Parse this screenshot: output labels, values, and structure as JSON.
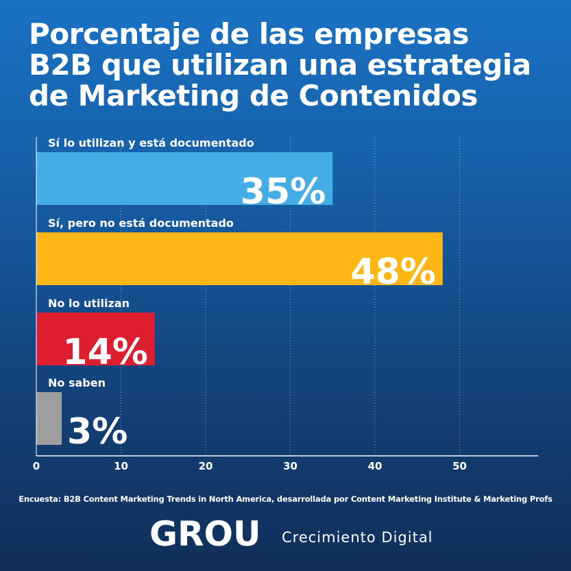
{
  "title_lines": [
    "Porcentaje de las empresas",
    "B2B que utilizan una estrategia",
    "de Marketing de Contenidos"
  ],
  "colors": {
    "background_top": "#1a72c4",
    "background_bottom": "#102f58",
    "bar_documented": "#45ade6",
    "bar_not_documented": "#fdb614",
    "bar_not_used": "#dc1e2e",
    "bar_dont_know": "#9e9e9e",
    "axis": "#ffffff"
  },
  "chart_data": {
    "type": "bar",
    "orientation": "horizontal",
    "categories": [
      "Sí lo utilizan y está documentado",
      "Sí, pero no está documentado",
      "No lo utilizan",
      "No saben"
    ],
    "values": [
      35,
      48,
      14,
      3
    ],
    "value_labels": [
      "35%",
      "48%",
      "14%",
      "3%"
    ],
    "bar_colors": [
      "#45ade6",
      "#fdb614",
      "#dc1e2e",
      "#9e9e9e"
    ],
    "x_ticks": [
      0,
      10,
      20,
      30,
      40,
      50
    ],
    "xlim": [
      0,
      59.5
    ],
    "grid": "vertical dotted"
  },
  "footnote": "Encuesta: B2B Content Marketing Trends in North America, desarrollada por Content Marketing Institute & Marketing Profs",
  "brand": {
    "logo_text": "GROU",
    "tagline": "Crecimiento Digital"
  }
}
